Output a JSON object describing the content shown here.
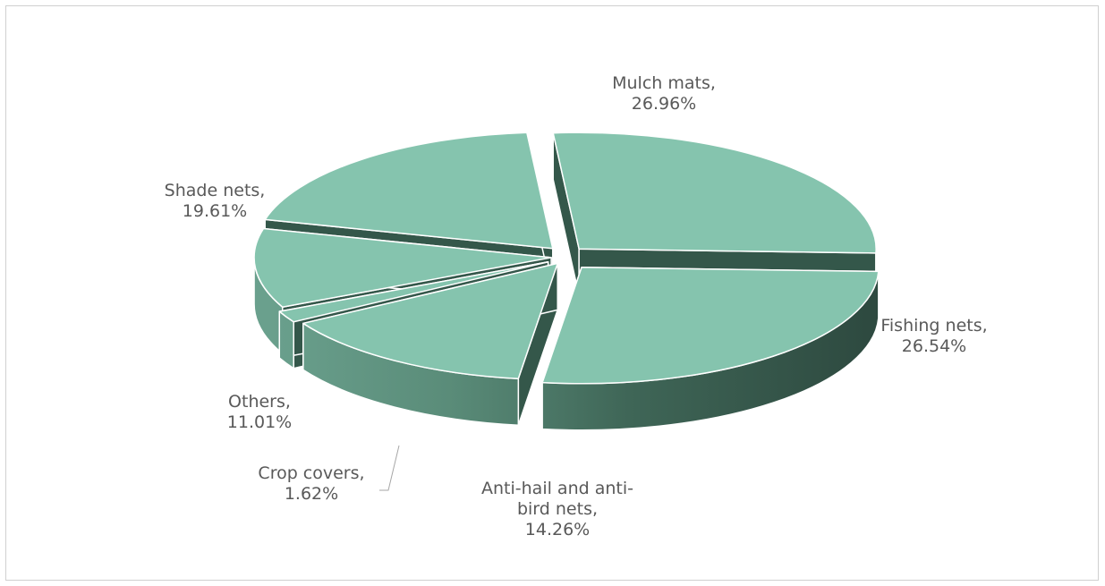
{
  "chart_data": {
    "type": "pie",
    "style": "3d-exploded",
    "slices": [
      {
        "name": "Mulch mats",
        "value": 26.96,
        "label_lines": [
          "Mulch mats,",
          "26.96%"
        ]
      },
      {
        "name": "Fishing nets",
        "value": 26.54,
        "label_lines": [
          "Fishing nets,",
          "26.54%"
        ]
      },
      {
        "name": "Anti-hail and anti-bird nets",
        "value": 14.26,
        "label_lines": [
          "Anti-hail and anti-",
          "bird nets,",
          "14.26%"
        ]
      },
      {
        "name": "Crop covers",
        "value": 1.62,
        "label_lines": [
          "Crop covers,",
          "1.62%"
        ]
      },
      {
        "name": "Others",
        "value": 11.01,
        "label_lines": [
          "Others,",
          "11.01%"
        ]
      },
      {
        "name": "Shade nets",
        "value": 19.61,
        "label_lines": [
          "Shade nets,",
          "19.61%"
        ]
      }
    ],
    "colors": {
      "top": "#85c4ae",
      "side_light": "#6aa08d",
      "side_dark": "#2e4a40",
      "edge": "#ffffff"
    },
    "legend": "none"
  }
}
